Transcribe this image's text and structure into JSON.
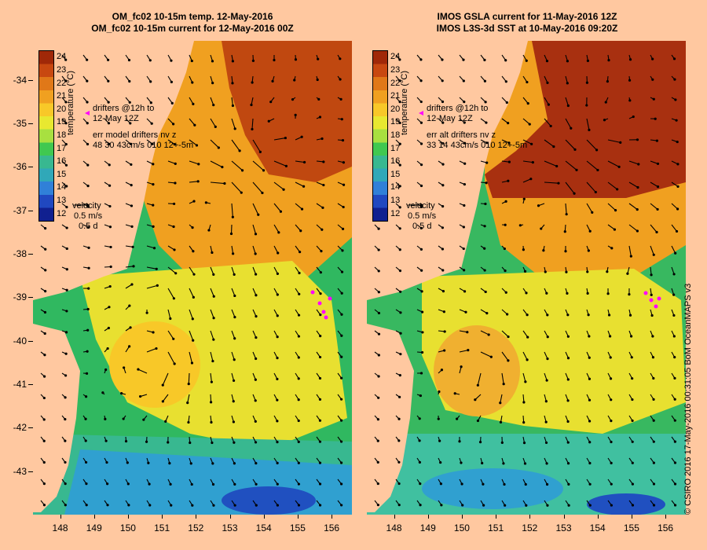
{
  "left_panel": {
    "title_line1": "OM_fc02 10-15m temp. 12-May-2016",
    "title_line2": "OM_fc02 10-15m current for 12-May-2016 00Z",
    "drifters_label": "drifters @12h to",
    "drifters_date": "12-May 12Z",
    "err_label": "err model drifters nv z",
    "err_values": "48 30 43cm/s 010 12+-5m",
    "velocity_label": "velocity",
    "velocity_scale": "0.5 m/s",
    "velocity_time": "0.5 d"
  },
  "right_panel": {
    "title_line1": "IMOS GSLA current for 11-May-2016 12Z",
    "title_line2": "IMOS L3S-3d SST at 10-May-2016 09:20Z",
    "drifters_label": "drifters @12h to",
    "drifters_date": "12-May 12Z",
    "err_label": "err alt drifters nv z",
    "err_values": "33 14 43cm/s 010 12+-5m",
    "velocity_label": "velocity",
    "velocity_scale": "0.5 m/s",
    "velocity_time": "0.5 d"
  },
  "colorbar": {
    "title": "temperature (°C)",
    "labels": [
      "24",
      "23",
      "22",
      "21",
      "20",
      "19",
      "18",
      "17",
      "16",
      "15",
      "14",
      "13",
      "12"
    ],
    "colors": [
      "#a02808",
      "#c84810",
      "#e07818",
      "#f0a020",
      "#f8c828",
      "#e8e830",
      "#a8e040",
      "#40c850",
      "#38b890",
      "#30a8b8",
      "#3080d8",
      "#2048c0",
      "#102090"
    ]
  },
  "axes": {
    "y_labels": [
      "-34",
      "-35",
      "-36",
      "-37",
      "-38",
      "-39",
      "-40",
      "-41",
      "-42",
      "-43"
    ],
    "x_labels": [
      "148",
      "149",
      "150",
      "151",
      "152",
      "153",
      "154",
      "155",
      "156"
    ]
  },
  "map_extent": {
    "lon": [
      147.2,
      156.6
    ],
    "lat": [
      -44.0,
      -33.1
    ]
  },
  "credit": "© CSIRO 2016  17-May-2016 00:31:05 BoM OceanMAPS v3",
  "land_color": "#ffc8a0"
}
